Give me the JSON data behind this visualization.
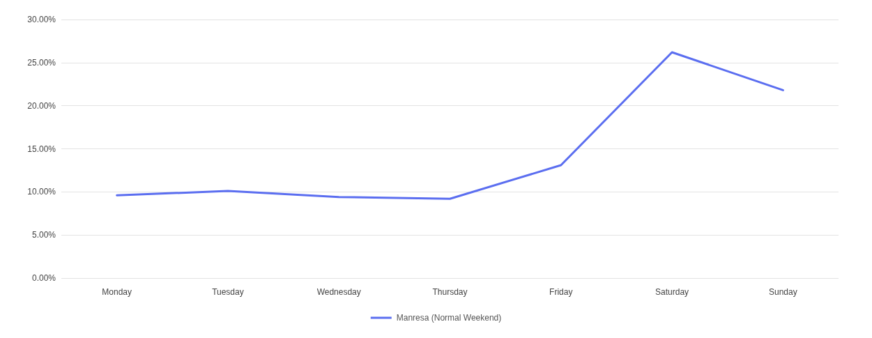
{
  "chart_data": {
    "type": "line",
    "categories": [
      "Monday",
      "Tuesday",
      "Wednesday",
      "Thursday",
      "Friday",
      "Saturday",
      "Sunday"
    ],
    "series": [
      {
        "name": "Manresa (Normal Weekend)",
        "color": "#5b6ef0",
        "values": [
          9.6,
          10.1,
          9.4,
          9.2,
          13.1,
          26.2,
          21.8
        ]
      }
    ],
    "ylim": [
      0,
      30
    ],
    "yticks": [
      {
        "value": 0,
        "label": "0.00%"
      },
      {
        "value": 5,
        "label": "5.00%"
      },
      {
        "value": 10,
        "label": "10.00%"
      },
      {
        "value": 15,
        "label": "15.00%"
      },
      {
        "value": 20,
        "label": "20.00%"
      },
      {
        "value": 25,
        "label": "25.00%"
      },
      {
        "value": 30,
        "label": "30.00%"
      }
    ],
    "grid": "y",
    "legend": "bottom",
    "marker": "none",
    "line_style": "solid"
  }
}
